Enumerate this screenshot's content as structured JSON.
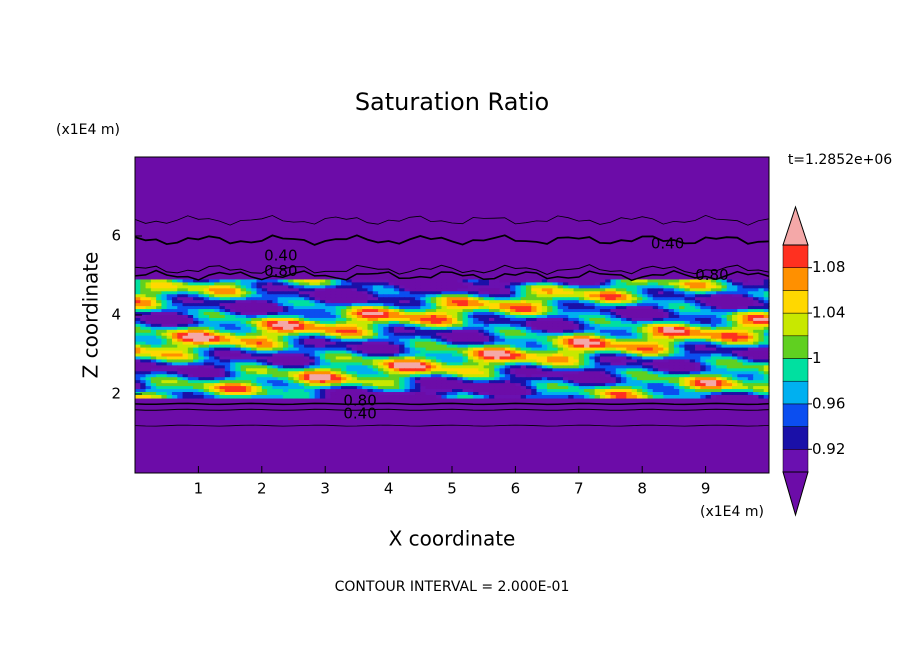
{
  "chart_data": {
    "type": "contour",
    "title": "Saturation Ratio",
    "xlabel": "X coordinate",
    "ylabel": "Z coordinate",
    "x_unit": "(x1E4 m)",
    "y_unit": "(x1E4 m)",
    "time_label": "t=1.2852e+06",
    "footer": "CONTOUR INTERVAL = 2.000E-01",
    "xlim": [
      0,
      10
    ],
    "xticks": [
      1,
      2,
      3,
      4,
      5,
      6,
      7,
      8,
      9
    ],
    "ylim": [
      0,
      8
    ],
    "yticks": [
      2,
      4,
      6
    ],
    "contour_labels": [
      {
        "label": "0.40",
        "x": 2.3,
        "y": 5.5
      },
      {
        "label": "0.80",
        "x": 2.3,
        "y": 5.1
      },
      {
        "label": "0.40",
        "x": 8.4,
        "y": 5.8
      },
      {
        "label": "0.80",
        "x": 9.1,
        "y": 5.0
      },
      {
        "label": "0.80",
        "x": 3.55,
        "y": 1.82
      },
      {
        "label": "0.40",
        "x": 3.55,
        "y": 1.5
      }
    ],
    "colorbar": {
      "levels": [
        0.9,
        0.92,
        0.94,
        0.96,
        0.98,
        1,
        1.02,
        1.04,
        1.06,
        1.08,
        1.1
      ],
      "colors": [
        "#6a10b0",
        "#1a10a8",
        "#0b4ef0",
        "#00b0f0",
        "#00e0a0",
        "#60d020",
        "#c8e800",
        "#ffd800",
        "#ff9000",
        "#ff3020"
      ],
      "under_color": "#6c0ca8",
      "over_color": "#f4a8a8",
      "ticks": [
        0.92,
        0.96,
        1,
        1.04,
        1.08
      ]
    }
  }
}
